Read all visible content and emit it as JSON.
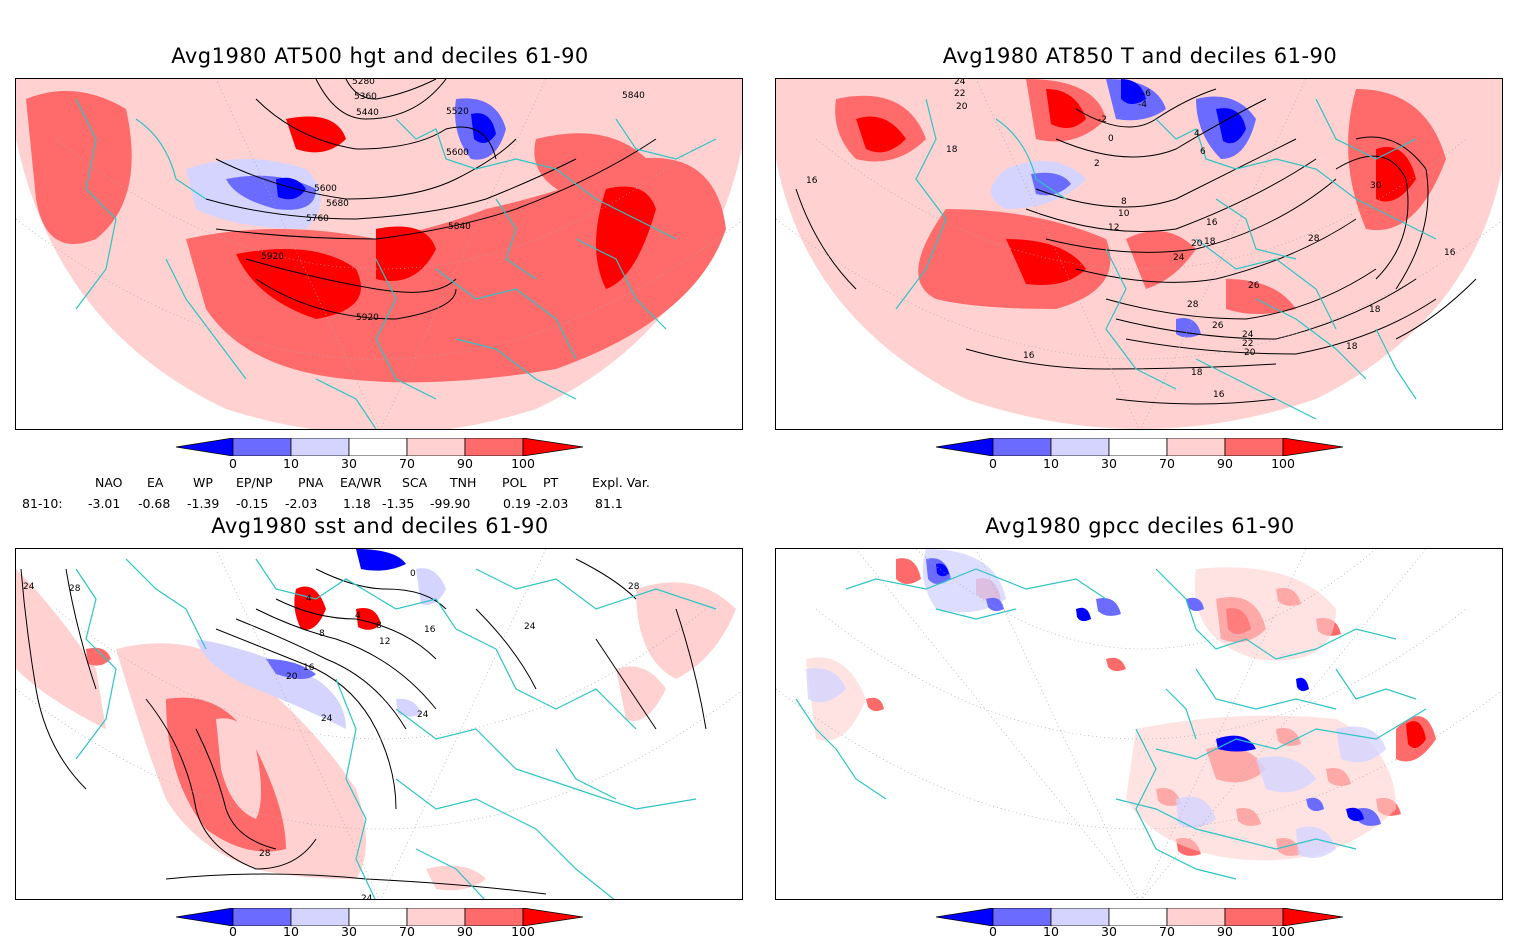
{
  "panels": [
    {
      "title": "Avg1980 AT500 hgt and deciles 61-90",
      "contour_labels": [
        "5280",
        "5360",
        "5440",
        "5520",
        "5600",
        "5600",
        "5680",
        "5760",
        "5840",
        "5840",
        "5920",
        "5920"
      ]
    },
    {
      "title": "Avg1980 AT850 T and deciles 61-90",
      "contour_labels": [
        "24",
        "22",
        "20",
        "-6",
        "-4",
        "-2",
        "0",
        "2",
        "18",
        "16",
        "8",
        "10",
        "12",
        "16",
        "18",
        "20",
        "24",
        "26",
        "28",
        "26",
        "24",
        "22",
        "20",
        "16",
        "18",
        "16",
        "30",
        "28",
        "18",
        "16",
        "18",
        "4",
        "6"
      ]
    },
    {
      "title": "Avg1980 sst and deciles 61-90",
      "contour_labels": [
        "24",
        "28",
        "0",
        "4",
        "8",
        "4",
        "8",
        "12",
        "16",
        "20",
        "24",
        "16",
        "24",
        "24",
        "28",
        "24",
        "28"
      ]
    },
    {
      "title": "Avg1980 gpcc deciles 61-90",
      "contour_labels": []
    }
  ],
  "colorbar": {
    "ticks": [
      "0",
      "10",
      "30",
      "70",
      "90",
      "100"
    ],
    "colors": [
      "#0000ff",
      "#6b6bff",
      "#d4d4ff",
      "#ffffff",
      "#ffd1d1",
      "#ff6b6b",
      "#ff0000"
    ]
  },
  "indices": {
    "headers": [
      "NAO",
      "EA",
      "WP",
      "EP/NP",
      "PNA",
      "EA/WR",
      "SCA",
      "TNH",
      "POL",
      "PT",
      "Expl. Var."
    ],
    "row_label": "81-10:",
    "values": [
      "-3.01",
      "-0.68",
      "-1.39",
      "-0.15",
      "-2.03",
      "1.18",
      "-1.35",
      "-99.90",
      "0.19",
      "-2.03",
      "81.1"
    ]
  },
  "map_colors": {
    "coast": "#2ec4c4",
    "light_red": "#ffd1d1",
    "mid_red": "#ff6b6b",
    "red": "#ff0000",
    "light_blue": "#d4d4ff",
    "mid_blue": "#6b6bff",
    "blue": "#0000ff"
  }
}
